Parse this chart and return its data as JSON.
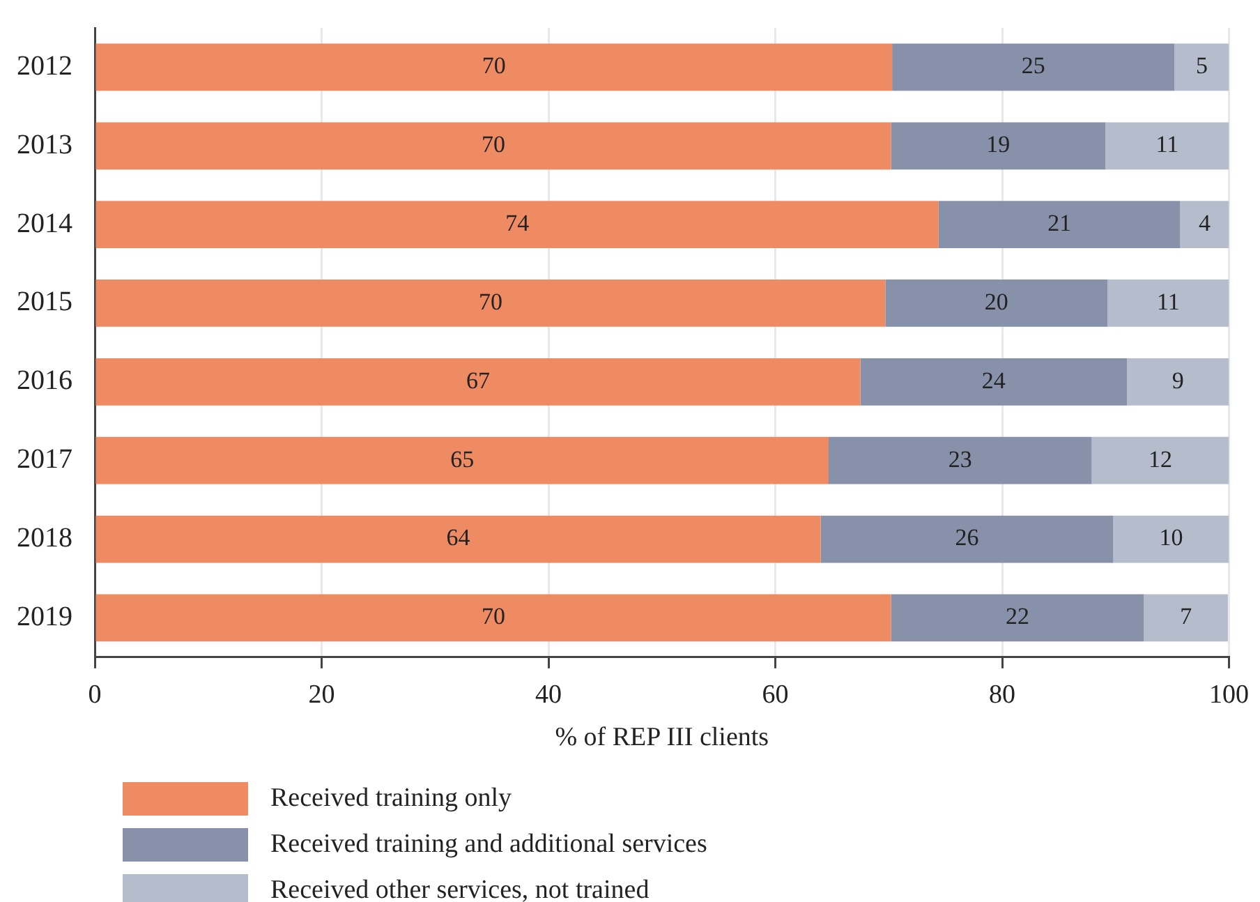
{
  "chart_data": {
    "type": "bar",
    "orientation": "horizontal",
    "stacked": true,
    "xlabel": "% of REP III clients",
    "categories": [
      "2012",
      "2013",
      "2014",
      "2015",
      "2016",
      "2017",
      "2018",
      "2019"
    ],
    "series": [
      {
        "name": "Received training only",
        "color": "#ee8b63",
        "values": [
          70.3,
          70.2,
          74.4,
          69.7,
          67.5,
          64.7,
          64.0,
          70.2
        ],
        "value_labels": [
          "70",
          "70",
          "74",
          "70",
          "67",
          "65",
          "64",
          "70"
        ]
      },
      {
        "name": "Received training and additional services",
        "color": "#8791aa",
        "values": [
          24.9,
          18.9,
          21.3,
          19.6,
          23.5,
          23.2,
          25.8,
          22.3
        ],
        "value_labels": [
          "25",
          "19",
          "21",
          "20",
          "24",
          "23",
          "26",
          "22"
        ]
      },
      {
        "name": "Received other services, not trained",
        "color": "#b5bdcd",
        "values": [
          4.8,
          10.9,
          4.3,
          10.7,
          9.0,
          12.1,
          10.2,
          7.4
        ],
        "value_labels": [
          "5",
          "11",
          "4",
          "11",
          "9",
          "12",
          "10",
          "7"
        ]
      }
    ],
    "xlim": [
      0,
      100
    ],
    "xticks": [
      0,
      20,
      40,
      60,
      80,
      100
    ],
    "grid": "x",
    "legend": "bottom"
  }
}
